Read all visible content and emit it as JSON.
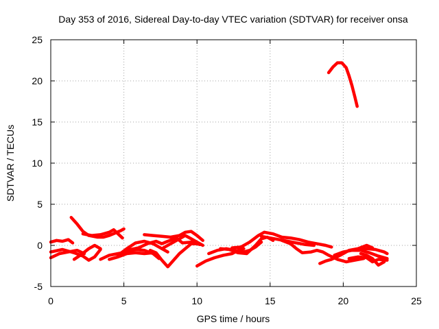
{
  "chart_data": {
    "type": "scatter",
    "title": "Day 353 of 2016, Sidereal Day-to-day VTEC variation (SDTVAR) for receiver onsa",
    "xlabel": "GPS time / hours",
    "ylabel": "SDTVAR / TECUs",
    "xlim": [
      0,
      25
    ],
    "ylim": [
      -5,
      25
    ],
    "xticks": [
      "0",
      "5",
      "10",
      "15",
      "20",
      "25"
    ],
    "yticks": [
      "-5",
      "0",
      "5",
      "10",
      "15",
      "20",
      "25"
    ],
    "xtick_values": [
      0,
      5,
      10,
      15,
      20,
      25
    ],
    "ytick_values": [
      -5,
      0,
      5,
      10,
      15,
      20,
      25
    ],
    "grid": true,
    "color": "#ff0000",
    "series": [
      {
        "name": "s1",
        "points": [
          [
            0.0,
            0.4
          ],
          [
            0.4,
            0.6
          ],
          [
            0.8,
            0.5
          ],
          [
            1.2,
            0.7
          ],
          [
            1.5,
            0.3
          ]
        ]
      },
      {
        "name": "s2",
        "points": [
          [
            0.0,
            -1.5
          ],
          [
            0.6,
            -1.0
          ],
          [
            1.2,
            -0.8
          ],
          [
            1.8,
            -0.6
          ],
          [
            2.3,
            -1.0
          ]
        ]
      },
      {
        "name": "s3",
        "points": [
          [
            0.0,
            -0.8
          ],
          [
            0.8,
            -0.5
          ],
          [
            1.6,
            -0.9
          ],
          [
            2.2,
            -1.3
          ],
          [
            2.6,
            -1.8
          ],
          [
            3.0,
            -1.4
          ],
          [
            3.4,
            -0.5
          ]
        ]
      },
      {
        "name": "s4",
        "points": [
          [
            1.4,
            3.4
          ],
          [
            1.8,
            2.6
          ],
          [
            2.2,
            1.7
          ],
          [
            2.6,
            1.2
          ],
          [
            3.2,
            1.0
          ],
          [
            3.6,
            1.0
          ],
          [
            4.0,
            1.2
          ],
          [
            4.4,
            1.5
          ],
          [
            4.8,
            1.8
          ],
          [
            5.0,
            2.0
          ]
        ]
      },
      {
        "name": "s5",
        "points": [
          [
            2.2,
            1.4
          ],
          [
            2.8,
            1.2
          ],
          [
            3.4,
            1.3
          ],
          [
            4.0,
            1.6
          ],
          [
            4.3,
            1.9
          ],
          [
            4.6,
            1.4
          ],
          [
            4.9,
            0.9
          ]
        ]
      },
      {
        "name": "s6",
        "points": [
          [
            1.6,
            -1.7
          ],
          [
            2.1,
            -1.1
          ],
          [
            2.6,
            -0.4
          ],
          [
            3.0,
            0.0
          ],
          [
            3.4,
            -0.4
          ]
        ]
      },
      {
        "name": "s7",
        "points": [
          [
            3.4,
            -1.7
          ],
          [
            4.0,
            -1.2
          ],
          [
            4.6,
            -1.0
          ],
          [
            5.2,
            -0.8
          ],
          [
            5.8,
            -0.5
          ],
          [
            6.4,
            -0.6
          ],
          [
            7.0,
            -1.0
          ],
          [
            7.4,
            -1.6
          ]
        ]
      },
      {
        "name": "s8",
        "points": [
          [
            4.0,
            -1.7
          ],
          [
            4.6,
            -1.4
          ],
          [
            5.2,
            -1.0
          ],
          [
            5.8,
            -0.9
          ],
          [
            6.4,
            -1.0
          ],
          [
            7.0,
            -0.9
          ]
        ]
      },
      {
        "name": "s9",
        "points": [
          [
            4.6,
            -1.2
          ],
          [
            5.2,
            -0.4
          ],
          [
            5.8,
            0.3
          ],
          [
            6.4,
            0.5
          ],
          [
            7.0,
            0.2
          ],
          [
            7.6,
            -0.4
          ],
          [
            8.0,
            -0.8
          ]
        ]
      },
      {
        "name": "s10",
        "points": [
          [
            6.4,
            1.3
          ],
          [
            7.0,
            1.2
          ],
          [
            7.6,
            1.1
          ],
          [
            8.2,
            1.0
          ],
          [
            8.8,
            1.2
          ],
          [
            9.2,
            1.6
          ],
          [
            9.6,
            1.7
          ],
          [
            10.0,
            1.2
          ],
          [
            10.4,
            0.6
          ]
        ]
      },
      {
        "name": "s11",
        "points": [
          [
            5.2,
            -0.6
          ],
          [
            6.0,
            -0.3
          ],
          [
            6.6,
            0.2
          ],
          [
            7.2,
            0.5
          ],
          [
            7.6,
            0.2
          ],
          [
            8.0,
            0.5
          ],
          [
            8.6,
            0.9
          ],
          [
            9.0,
            0.3
          ],
          [
            9.6,
            0.4
          ],
          [
            10.2,
            0.1
          ]
        ]
      },
      {
        "name": "s12",
        "points": [
          [
            6.8,
            -0.6
          ],
          [
            7.2,
            -0.9
          ],
          [
            7.6,
            -1.8
          ],
          [
            8.0,
            -2.6
          ],
          [
            8.4,
            -1.8
          ],
          [
            8.8,
            -1.0
          ],
          [
            9.2,
            -0.4
          ],
          [
            9.6,
            0.2
          ],
          [
            10.0,
            0.2
          ]
        ]
      },
      {
        "name": "s13",
        "points": [
          [
            7.6,
            -0.4
          ],
          [
            8.2,
            0.2
          ],
          [
            8.8,
            0.8
          ],
          [
            9.2,
            1.2
          ],
          [
            9.6,
            0.8
          ],
          [
            10.0,
            0.4
          ],
          [
            10.4,
            0.0
          ]
        ]
      },
      {
        "name": "s14",
        "points": [
          [
            10.0,
            -2.5
          ],
          [
            10.6,
            -1.9
          ],
          [
            11.2,
            -1.5
          ],
          [
            11.8,
            -1.2
          ],
          [
            12.4,
            -1.0
          ],
          [
            12.8,
            -0.6
          ],
          [
            13.2,
            -0.4
          ]
        ]
      },
      {
        "name": "s15",
        "points": [
          [
            10.8,
            -1.0
          ],
          [
            11.4,
            -0.6
          ],
          [
            12.0,
            -0.4
          ],
          [
            12.6,
            -0.6
          ],
          [
            13.2,
            -0.8
          ],
          [
            13.6,
            -0.6
          ],
          [
            14.0,
            -0.2
          ],
          [
            14.4,
            0.4
          ]
        ]
      },
      {
        "name": "s16",
        "points": [
          [
            11.6,
            -0.4
          ],
          [
            12.2,
            -0.5
          ],
          [
            12.8,
            -0.9
          ],
          [
            13.4,
            -1.0
          ],
          [
            14.0,
            0.0
          ],
          [
            14.4,
            0.8
          ],
          [
            14.8,
            1.0
          ],
          [
            15.2,
            0.6
          ]
        ]
      },
      {
        "name": "s17",
        "points": [
          [
            12.4,
            -0.3
          ],
          [
            13.0,
            -0.2
          ],
          [
            13.6,
            0.4
          ],
          [
            14.2,
            1.2
          ],
          [
            14.6,
            1.6
          ],
          [
            15.2,
            1.4
          ],
          [
            15.8,
            1.0
          ],
          [
            16.4,
            0.9
          ],
          [
            17.0,
            0.7
          ],
          [
            17.6,
            0.4
          ],
          [
            18.2,
            0.2
          ],
          [
            18.8,
            0.0
          ],
          [
            19.2,
            -0.2
          ]
        ]
      },
      {
        "name": "s18",
        "points": [
          [
            14.4,
            1.1
          ],
          [
            15.0,
            0.9
          ],
          [
            15.6,
            0.7
          ],
          [
            16.2,
            0.5
          ],
          [
            16.8,
            0.3
          ],
          [
            17.4,
            0.1
          ],
          [
            18.0,
            0.0
          ]
        ]
      },
      {
        "name": "s19",
        "points": [
          [
            15.8,
            0.6
          ],
          [
            16.4,
            0.2
          ],
          [
            16.8,
            -0.4
          ],
          [
            17.2,
            -0.9
          ],
          [
            17.8,
            -0.8
          ],
          [
            18.2,
            -0.6
          ],
          [
            18.6,
            -0.8
          ],
          [
            19.0,
            -1.2
          ],
          [
            19.6,
            -1.7
          ],
          [
            20.2,
            -2.0
          ],
          [
            20.8,
            -1.8
          ],
          [
            21.4,
            -1.6
          ]
        ]
      },
      {
        "name": "s20",
        "points": [
          [
            18.4,
            -2.2
          ],
          [
            18.8,
            -1.9
          ],
          [
            19.2,
            -1.7
          ],
          [
            19.8,
            -1.2
          ],
          [
            20.4,
            -0.6
          ],
          [
            21.0,
            -0.4
          ],
          [
            21.6,
            0.0
          ],
          [
            22.0,
            -0.3
          ]
        ]
      },
      {
        "name": "s21",
        "points": [
          [
            19.4,
            -1.2
          ],
          [
            20.0,
            -0.8
          ],
          [
            20.6,
            -0.6
          ],
          [
            21.2,
            -0.6
          ],
          [
            21.8,
            -0.9
          ],
          [
            22.4,
            -1.3
          ],
          [
            23.0,
            -1.6
          ]
        ]
      },
      {
        "name": "s22",
        "points": [
          [
            20.4,
            -1.6
          ],
          [
            21.0,
            -1.4
          ],
          [
            21.6,
            -1.5
          ],
          [
            22.0,
            -2.0
          ],
          [
            22.4,
            -1.7
          ],
          [
            23.0,
            -1.8
          ]
        ]
      },
      {
        "name": "s23",
        "points": [
          [
            21.0,
            -0.6
          ],
          [
            21.6,
            -0.4
          ],
          [
            22.2,
            -0.5
          ],
          [
            22.8,
            -0.8
          ],
          [
            23.0,
            -1.0
          ]
        ]
      },
      {
        "name": "s24",
        "points": [
          [
            21.2,
            -1.0
          ],
          [
            21.6,
            -1.2
          ],
          [
            22.0,
            -1.6
          ],
          [
            22.4,
            -2.4
          ],
          [
            22.8,
            -2.0
          ]
        ]
      },
      {
        "name": "s25",
        "points": [
          [
            19.0,
            21.0
          ],
          [
            19.3,
            21.7
          ],
          [
            19.6,
            22.2
          ],
          [
            19.9,
            22.2
          ],
          [
            20.2,
            21.6
          ],
          [
            20.4,
            20.6
          ],
          [
            20.6,
            19.4
          ],
          [
            20.8,
            18.0
          ],
          [
            20.95,
            16.9
          ]
        ]
      }
    ]
  }
}
